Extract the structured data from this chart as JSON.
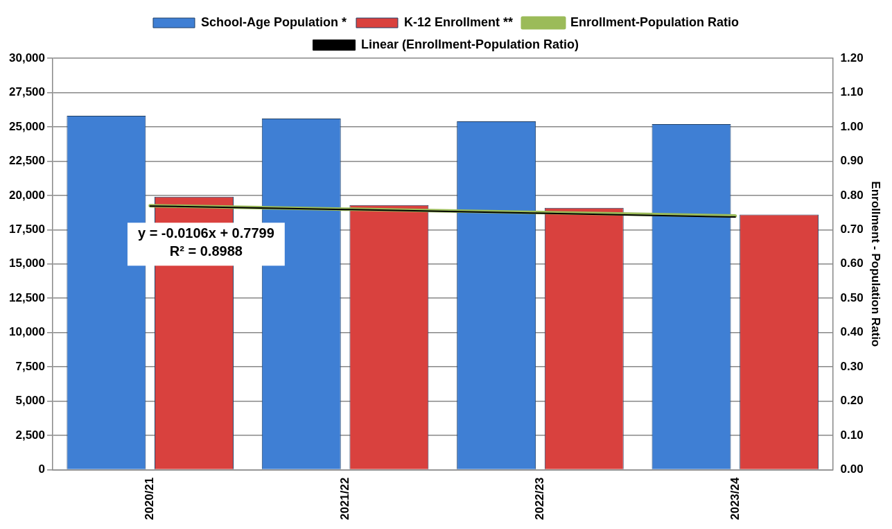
{
  "chart_data": {
    "type": "bar",
    "categories": [
      "2020/21",
      "2021/22",
      "2022/23",
      "2023/24"
    ],
    "series": [
      {
        "name": "School-Age Population *",
        "color": "#3f7fd4",
        "values": [
          25800,
          25600,
          25400,
          25200
        ]
      },
      {
        "name": "K-12 Enrollment **",
        "color": "#d9413e",
        "values": [
          19900,
          19300,
          19100,
          18600
        ]
      },
      {
        "name": "Enrollment-Population Ratio",
        "type": "line",
        "axis": "y2",
        "color": "#9bbb59",
        "values": [
          0.77,
          0.76,
          0.75,
          0.74
        ]
      },
      {
        "name": "Linear (Enrollment-Population Ratio)",
        "type": "line",
        "axis": "y2",
        "color": "#000000",
        "values": [
          0.769,
          0.759,
          0.748,
          0.737
        ]
      }
    ],
    "ylim": [
      0,
      30000
    ],
    "yticks": [
      0,
      {
        "value": 2500,
        "label": "2,500"
      },
      {
        "value": 5000,
        "label": "5,000"
      },
      {
        "value": 7500,
        "label": "7,500"
      },
      {
        "value": 10000,
        "label": "10,000"
      },
      {
        "value": 12500,
        "label": "12,500"
      },
      {
        "value": 15000,
        "label": "15,000"
      },
      {
        "value": 17500,
        "label": "17,500"
      },
      {
        "value": 20000,
        "label": "20,000"
      },
      {
        "value": 22500,
        "label": "22,500"
      },
      {
        "value": 25000,
        "label": "25,000"
      },
      {
        "value": 27500,
        "label": "27,500"
      },
      {
        "value": 30000,
        "label": "30,000"
      }
    ],
    "y2lim": [
      0,
      1.2
    ],
    "y2ticks": [
      {
        "value": 0,
        "label": "0.00"
      },
      {
        "value": 0.1,
        "label": "0.10"
      },
      {
        "value": 0.2,
        "label": "0.20"
      },
      {
        "value": 0.3,
        "label": "0.30"
      },
      {
        "value": 0.4,
        "label": "0.40"
      },
      {
        "value": 0.5,
        "label": "0.50"
      },
      {
        "value": 0.6,
        "label": "0.60"
      },
      {
        "value": 0.7,
        "label": "0.70"
      },
      {
        "value": 0.8,
        "label": "0.80"
      },
      {
        "value": 0.9,
        "label": "0.90"
      },
      {
        "value": 1,
        "label": "1.00"
      },
      {
        "value": 1.1,
        "label": "1.10"
      },
      {
        "value": 1.2,
        "label": "1.20"
      }
    ],
    "y2label": "Enrollment - Population Ratio",
    "annotations": [
      "y = -0.0106x + 0.7799\nR² = 0.8988"
    ],
    "grid": "y",
    "legend": "top",
    "marker": "none",
    "line_style": "solid"
  }
}
